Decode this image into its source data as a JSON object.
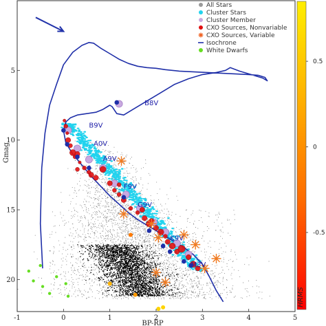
{
  "chart_data": {
    "type": "scatter",
    "title": "",
    "xlabel": "BP-RP",
    "ylabel": "Gmag",
    "xlim": [
      -1,
      5
    ],
    "ylim": [
      22.3,
      0
    ],
    "x_ticks": [
      -1,
      0,
      1,
      2,
      3,
      4,
      5
    ],
    "y_ticks": [
      5,
      10,
      15,
      20
    ],
    "legend_position": "top-right",
    "legend": [
      {
        "label": "All Stars",
        "color": "#9a9a9a",
        "marker": "circle"
      },
      {
        "label": "Cluster Stars",
        "color": "#22d3ee",
        "marker": "circle"
      },
      {
        "label": "Cluster Member",
        "color": "#c9a9e0",
        "marker": "circle"
      },
      {
        "label": "CXO Sources, Nonvariable",
        "color": "#e01010",
        "marker": "circle"
      },
      {
        "label": "CXO Sources, Variable",
        "color": "#f06020",
        "marker": "star"
      },
      {
        "label": "Isochrone",
        "color": "#1f2fa8",
        "marker": "line"
      },
      {
        "label": "White Dwarfs",
        "color": "#66dd22",
        "marker": "circle"
      }
    ],
    "spectral_labels": [
      {
        "text": "B8V",
        "x": 1.75,
        "y": 7.5
      },
      {
        "text": "B9V",
        "x": 0.55,
        "y": 9.1
      },
      {
        "text": "A0V",
        "x": 0.65,
        "y": 10.4
      },
      {
        "text": "A9V",
        "x": 0.85,
        "y": 11.5
      },
      {
        "text": "F9V",
        "x": 1.3,
        "y": 13.5
      },
      {
        "text": "G9V",
        "x": 1.6,
        "y": 14.8
      },
      {
        "text": "K9V",
        "x": 2.3,
        "y": 17.2
      },
      {
        "text": "M3V",
        "x": 2.75,
        "y": 19.1
      }
    ],
    "isochrone": {
      "x": [
        -0.45,
        -0.5,
        -0.47,
        -0.4,
        -0.3,
        -0.15,
        0.0,
        0.2,
        0.4,
        0.55,
        0.65,
        0.8,
        1.0,
        1.2,
        1.4,
        1.6,
        1.8,
        2.0,
        2.2,
        2.5,
        2.8,
        3.1,
        3.4,
        3.7,
        4.0,
        4.2,
        4.35,
        4.4,
        4.3,
        4.1,
        3.8,
        3.6,
        3.5,
        3.3,
        3.0,
        2.7,
        2.4,
        2.1,
        1.8,
        1.5,
        1.3,
        1.15,
        1.05,
        1.0,
        0.95,
        0.85,
        0.7,
        0.5,
        0.3,
        0.15,
        0.05,
        0.0,
        0.05,
        0.2,
        0.4,
        0.6,
        0.8,
        1.0,
        1.2,
        1.4,
        1.6,
        1.8,
        2.0,
        2.2,
        2.4,
        2.6,
        2.8,
        3.0,
        3.15,
        3.3,
        3.45
      ],
      "y": [
        19.2,
        16.0,
        12.0,
        9.5,
        7.5,
        6.0,
        4.6,
        3.7,
        3.2,
        3.0,
        3.05,
        3.4,
        3.8,
        4.2,
        4.5,
        4.7,
        4.8,
        4.85,
        4.95,
        5.05,
        5.1,
        5.15,
        5.2,
        5.25,
        5.3,
        5.35,
        5.5,
        5.75,
        5.55,
        5.35,
        5.05,
        4.8,
        5.0,
        5.15,
        5.3,
        5.6,
        6.0,
        6.6,
        7.2,
        7.8,
        8.2,
        8.1,
        7.6,
        7.5,
        7.6,
        7.8,
        8.0,
        8.1,
        8.2,
        8.4,
        8.7,
        9.3,
        10.2,
        11.0,
        11.8,
        12.6,
        13.3,
        14.0,
        14.6,
        15.2,
        15.7,
        16.1,
        16.5,
        16.9,
        17.3,
        17.7,
        18.2,
        18.9,
        19.8,
        20.8,
        21.6
      ]
    },
    "cxo_nonvariable": {
      "x": [
        0.02,
        0.05,
        0.08,
        0.1,
        0.15,
        0.2,
        0.25,
        0.3,
        0.35,
        0.45,
        0.55,
        0.7,
        0.85,
        1.0,
        1.1,
        1.2,
        1.3,
        1.45,
        1.6,
        1.75,
        1.85,
        1.9,
        2.0,
        2.1,
        2.2,
        2.25,
        2.35,
        2.45,
        2.55,
        2.7,
        2.8,
        2.9,
        0.3,
        0.6,
        1.2,
        1.7
      ],
      "y": [
        8.6,
        9.0,
        9.5,
        10.0,
        10.4,
        10.9,
        11.2,
        11.0,
        11.6,
        12.0,
        12.3,
        12.7,
        12.1,
        13.1,
        13.6,
        13.9,
        14.3,
        14.9,
        15.2,
        15.6,
        16.0,
        15.8,
        16.3,
        16.6,
        16.9,
        17.3,
        17.6,
        18.0,
        17.8,
        18.4,
        18.9,
        19.2,
        12.1,
        12.5,
        13.2,
        15.0
      ],
      "size": [
        3,
        4,
        3,
        5,
        4,
        6,
        4,
        5,
        3,
        4,
        4,
        5,
        6,
        5,
        4,
        4,
        5,
        4,
        4,
        5,
        6,
        5,
        5,
        6,
        4,
        5,
        6,
        5,
        7,
        5,
        6,
        5,
        4,
        5,
        4,
        5
      ]
    },
    "cxo_variable": {
      "x": [
        1.25,
        1.3,
        1.9,
        2.05,
        2.6,
        2.85,
        3.05,
        3.3,
        2.0,
        2.2
      ],
      "y": [
        11.5,
        15.3,
        16.0,
        17.0,
        16.8,
        17.5,
        19.2,
        18.5,
        19.5,
        20.2
      ]
    },
    "cluster_members": {
      "x": [
        0.1,
        0.3,
        0.55,
        0.85,
        1.1,
        1.35,
        1.65,
        1.95,
        2.2,
        2.45,
        2.7,
        1.2
      ],
      "y": [
        9.3,
        10.6,
        11.4,
        12.0,
        13.1,
        13.9,
        14.9,
        15.9,
        16.6,
        17.4,
        18.2,
        7.4
      ]
    },
    "blue_points": {
      "x": [
        0.0,
        0.08,
        0.3,
        0.55,
        1.15,
        1.3,
        1.85,
        2.15,
        2.3,
        2.6,
        2.75
      ],
      "y": [
        9.3,
        10.3,
        11.2,
        12.0,
        7.3,
        14.1,
        16.5,
        17.6,
        18.0,
        18.7,
        19.0
      ]
    },
    "white_dwarfs": {
      "x": [
        -0.75,
        -0.65,
        -0.45,
        -0.3,
        -0.15,
        0.05,
        0.1,
        -0.5
      ],
      "y": [
        19.4,
        20.1,
        20.5,
        21.0,
        19.8,
        20.3,
        21.2,
        19.0
      ]
    },
    "colorbar": {
      "label": "HRMS",
      "ticks": [
        0.5,
        0,
        -0.5
      ],
      "range": [
        -0.95,
        0.85
      ],
      "colors": [
        "#ff0000",
        "#ff6a00",
        "#ffb400",
        "#ffee00"
      ]
    },
    "annotation": {
      "type": "arrow",
      "color": "#2233aa",
      "x": [
        -0.6,
        0.0
      ],
      "y": [
        1.2,
        2.2
      ]
    }
  }
}
